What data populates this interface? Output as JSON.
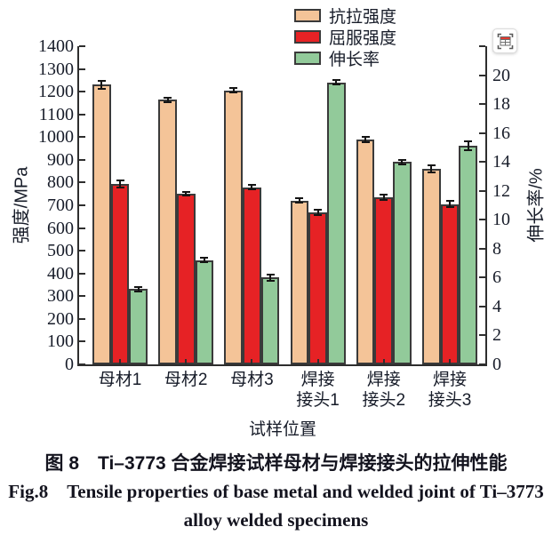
{
  "chart_data": {
    "type": "bar",
    "title": "",
    "categories": [
      "母材1",
      "母材2",
      "母材3",
      "焊接\n接头1",
      "焊接\n接头2",
      "焊接\n接头3"
    ],
    "xlabel": "试样位置",
    "left_axis": {
      "label": "强度/MPa",
      "min": 0,
      "max": 1400,
      "step": 100
    },
    "right_axis": {
      "label": "伸长率/%",
      "min": 0,
      "max": 22,
      "step": 2
    },
    "grid": false,
    "legend_position": "top-center",
    "series": [
      {
        "name": "抗拉强度",
        "axis": "left",
        "color": "#F4C498",
        "values": [
          1230,
          1165,
          1205,
          720,
          990,
          860
        ],
        "errors": [
          18,
          10,
          10,
          10,
          12,
          15
        ]
      },
      {
        "name": "屈服强度",
        "axis": "left",
        "color": "#E62225",
        "values": [
          795,
          750,
          780,
          670,
          735,
          705
        ],
        "errors": [
          15,
          8,
          10,
          12,
          10,
          14
        ]
      },
      {
        "name": "伸长率",
        "axis": "right",
        "color": "#92CA9A",
        "values": [
          5.2,
          7.2,
          6.0,
          19.5,
          14.0,
          15.1
        ],
        "errors": [
          0.15,
          0.15,
          0.2,
          0.15,
          0.15,
          0.3
        ]
      }
    ]
  },
  "legend": {
    "items": [
      {
        "label": "抗拉强度",
        "color": "#F4C498"
      },
      {
        "label": "屈服强度",
        "color": "#E62225"
      },
      {
        "label": "伸长率",
        "color": "#92CA9A"
      }
    ]
  },
  "overlay": {
    "capture_icon": "table-capture-icon",
    "header_color": "#e03a2f"
  },
  "caption": {
    "line1": "图 8 Ti–3773 合金焊接试样母材与焊接接头的拉伸性能",
    "line2": "Fig.8 Tensile properties of base metal and welded joint of Ti–3773",
    "line3": "alloy welded specimens"
  },
  "colors": {
    "axis": "#2e2e2e",
    "bar_border": "#3a3a3a",
    "error_bar": "#141414",
    "text": "#171c29"
  }
}
